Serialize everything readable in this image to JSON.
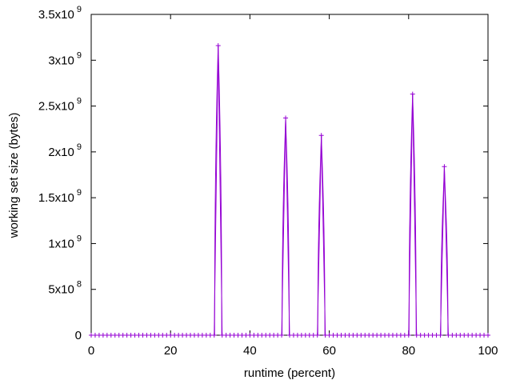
{
  "chart_data": {
    "type": "line",
    "xlabel": "runtime (percent)",
    "ylabel": "working set size (bytes)",
    "xlim": [
      0,
      100
    ],
    "ylim": [
      0,
      3500000000
    ],
    "grid": false,
    "legend": "none",
    "series_color": "#9400d3",
    "x_ticks": [
      {
        "value": 0,
        "label": "0"
      },
      {
        "value": 20,
        "label": "20"
      },
      {
        "value": 40,
        "label": "40"
      },
      {
        "value": 60,
        "label": "60"
      },
      {
        "value": 80,
        "label": "80"
      },
      {
        "value": 100,
        "label": "100"
      }
    ],
    "y_ticks": [
      {
        "value": 0,
        "mant": "0",
        "exp": ""
      },
      {
        "value": 500000000,
        "mant": "5x10",
        "exp": "8"
      },
      {
        "value": 1000000000,
        "mant": "1x10",
        "exp": "9"
      },
      {
        "value": 1500000000,
        "mant": "1.5x10",
        "exp": "9"
      },
      {
        "value": 2000000000,
        "mant": "2x10",
        "exp": "9"
      },
      {
        "value": 2500000000,
        "mant": "2.5x10",
        "exp": "9"
      },
      {
        "value": 3000000000,
        "mant": "3x10",
        "exp": "9"
      },
      {
        "value": 3500000000,
        "mant": "3.5x10",
        "exp": "9"
      }
    ],
    "x_step": 1,
    "baseline_value": 0,
    "peaks": [
      {
        "x": 32,
        "y": 3160000000
      },
      {
        "x": 49,
        "y": 2370000000
      },
      {
        "x": 58,
        "y": 2180000000
      },
      {
        "x": 81,
        "y": 2630000000
      },
      {
        "x": 89,
        "y": 1840000000
      }
    ]
  }
}
